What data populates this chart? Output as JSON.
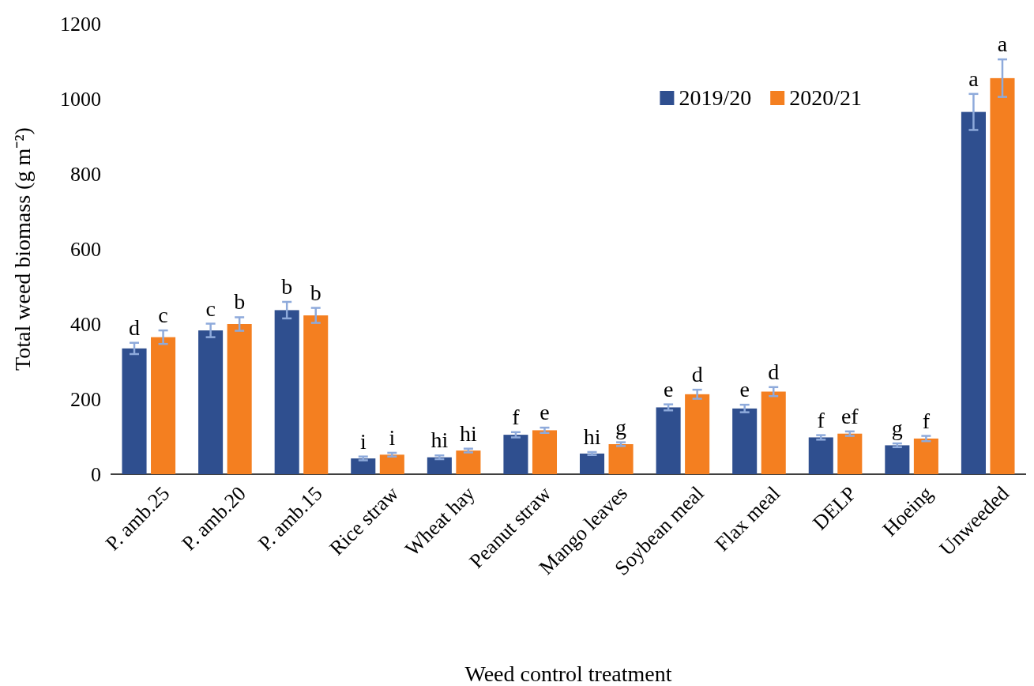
{
  "chart_data": {
    "type": "bar",
    "xlabel": "Weed control treatment",
    "ylabel": "Total weed biomass (g m⁻²)",
    "categories": [
      "P. amb.25",
      "P. amb.20",
      "P. amb.15",
      "Rice straw",
      "Wheat hay",
      "Peanut straw",
      "Mango leaves",
      "Soybean meal",
      "Flax meal",
      "DELP",
      "Hoeing",
      "Unweeded"
    ],
    "series": [
      {
        "name": "2019/20",
        "color": "#2f4f8f",
        "values": [
          335,
          383,
          437,
          42,
          45,
          105,
          55,
          178,
          175,
          98,
          77,
          965
        ],
        "errors": [
          15,
          18,
          22,
          5,
          5,
          7,
          4,
          8,
          10,
          6,
          5,
          48
        ],
        "value_labels": [
          "d",
          "c",
          "b",
          "i",
          "hi",
          "f",
          "hi",
          "e",
          "e",
          "f",
          "g",
          "a"
        ]
      },
      {
        "name": "2020/21",
        "color": "#f47f20",
        "values": [
          365,
          400,
          423,
          52,
          63,
          117,
          80,
          213,
          220,
          108,
          95,
          1055
        ],
        "errors": [
          18,
          18,
          20,
          5,
          5,
          7,
          5,
          12,
          12,
          6,
          7,
          50
        ],
        "value_labels": [
          "c",
          "b",
          "b",
          "i",
          "hi",
          "e",
          "g",
          "d",
          "d",
          "ef",
          "f",
          "a"
        ]
      }
    ],
    "ylim": [
      0,
      1200
    ],
    "yticks": [
      0,
      200,
      400,
      600,
      800,
      1000,
      1200
    ],
    "grid": false,
    "legend": "top right"
  }
}
